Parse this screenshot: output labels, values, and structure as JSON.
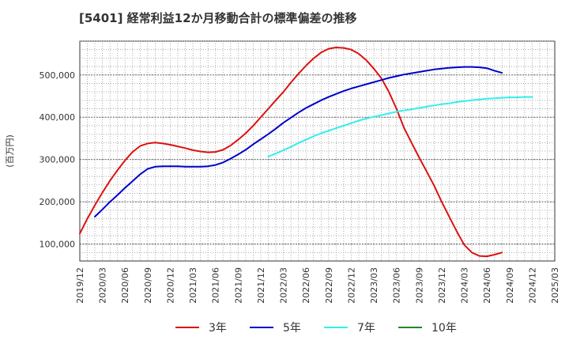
{
  "chart_data": {
    "type": "line",
    "title": "[5401]  経常利益12か月移動合計の標準偏差の推移",
    "ylabel": "(百万円)",
    "xlabel": "",
    "ylim": [
      60000,
      580000
    ],
    "xlim": [
      "2019-12",
      "2025-03"
    ],
    "x_ticks": [
      "2019/12",
      "2020/03",
      "2020/06",
      "2020/09",
      "2020/12",
      "2021/03",
      "2021/06",
      "2021/09",
      "2021/12",
      "2022/03",
      "2022/06",
      "2022/09",
      "2022/12",
      "2023/03",
      "2023/06",
      "2023/09",
      "2023/12",
      "2024/03",
      "2024/06",
      "2024/09",
      "2024/12",
      "2025/03"
    ],
    "y_ticks": [
      100000,
      200000,
      300000,
      400000,
      500000
    ],
    "y_tick_labels": [
      "100,000",
      "200,000",
      "300,000",
      "400,000",
      "500,000"
    ],
    "grid": true,
    "legend": "bottom",
    "series": [
      {
        "name": "3年",
        "color": "#dd1111",
        "x": [
          "2019-12",
          "2020-01",
          "2020-02",
          "2020-03",
          "2020-04",
          "2020-05",
          "2020-06",
          "2020-07",
          "2020-08",
          "2020-09",
          "2020-10",
          "2020-11",
          "2020-12",
          "2021-01",
          "2021-02",
          "2021-03",
          "2021-04",
          "2021-05",
          "2021-06",
          "2021-07",
          "2021-08",
          "2021-09",
          "2021-10",
          "2021-11",
          "2021-12",
          "2022-01",
          "2022-02",
          "2022-03",
          "2022-04",
          "2022-05",
          "2022-06",
          "2022-07",
          "2022-08",
          "2022-09",
          "2022-10",
          "2022-11",
          "2022-12",
          "2023-01",
          "2023-02",
          "2023-03",
          "2023-04",
          "2023-05",
          "2023-06",
          "2023-07",
          "2023-08",
          "2023-09",
          "2023-10",
          "2023-11",
          "2023-12",
          "2024-01",
          "2024-02",
          "2024-03",
          "2024-04",
          "2024-05",
          "2024-06",
          "2024-07",
          "2024-08",
          "2024-09",
          "2024-10",
          "2024-11",
          "2024-12"
        ],
        "values": [
          125000,
          160000,
          192000,
          222000,
          250000,
          275000,
          298000,
          318000,
          332000,
          338000,
          340000,
          338000,
          335000,
          331000,
          327000,
          322000,
          319000,
          317000,
          318000,
          323000,
          333000,
          347000,
          362000,
          380000,
          400000,
          420000,
          440000,
          460000,
          482000,
          503000,
          522000,
          539000,
          553000,
          562000,
          565000,
          564000,
          560000,
          550000,
          535000,
          515000,
          492000,
          460000,
          420000,
          375000,
          340000,
          305000,
          272000,
          238000,
          200000,
          165000,
          130000,
          98000,
          80000,
          72000,
          71000,
          75000,
          80000,
          null,
          null,
          null,
          null
        ]
      },
      {
        "name": "5年",
        "color": "#0000cc",
        "x": [
          "2020-02",
          "2020-03",
          "2020-04",
          "2020-05",
          "2020-06",
          "2020-07",
          "2020-08",
          "2020-09",
          "2020-10",
          "2020-11",
          "2020-12",
          "2021-01",
          "2021-02",
          "2021-03",
          "2021-04",
          "2021-05",
          "2021-06",
          "2021-07",
          "2021-08",
          "2021-09",
          "2021-10",
          "2021-11",
          "2021-12",
          "2022-01",
          "2022-02",
          "2022-03",
          "2022-04",
          "2022-05",
          "2022-06",
          "2022-07",
          "2022-08",
          "2022-09",
          "2022-10",
          "2022-11",
          "2022-12",
          "2023-01",
          "2023-02",
          "2023-03",
          "2023-04",
          "2023-05",
          "2023-06",
          "2023-07",
          "2023-08",
          "2023-09",
          "2023-10",
          "2023-11",
          "2023-12",
          "2024-01",
          "2024-02",
          "2024-03",
          "2024-04",
          "2024-05",
          "2024-06",
          "2024-07",
          "2024-08",
          "2024-09",
          "2024-10",
          "2024-11",
          "2024-12"
        ],
        "values": [
          165000,
          182000,
          200000,
          216000,
          233000,
          249000,
          265000,
          278000,
          283000,
          284000,
          284000,
          284000,
          283000,
          283000,
          283000,
          284000,
          287000,
          293000,
          302000,
          312000,
          323000,
          336000,
          348000,
          360000,
          373000,
          387000,
          399000,
          411000,
          422000,
          431000,
          440000,
          448000,
          455000,
          462000,
          468000,
          473000,
          478000,
          483000,
          488000,
          493000,
          497000,
          501000,
          504000,
          507000,
          510000,
          513000,
          515000,
          517000,
          518000,
          519000,
          519000,
          518000,
          516000,
          510000,
          505000,
          null,
          null,
          null,
          null
        ]
      },
      {
        "name": "7年",
        "color": "#33eeee",
        "x": [
          "2022-01",
          "2022-02",
          "2022-03",
          "2022-04",
          "2022-05",
          "2022-06",
          "2022-07",
          "2022-08",
          "2022-09",
          "2022-10",
          "2022-11",
          "2022-12",
          "2023-01",
          "2023-02",
          "2023-03",
          "2023-04",
          "2023-05",
          "2023-06",
          "2023-07",
          "2023-08",
          "2023-09",
          "2023-10",
          "2023-11",
          "2023-12",
          "2024-01",
          "2024-02",
          "2024-03",
          "2024-04",
          "2024-05",
          "2024-06",
          "2024-07",
          "2024-08",
          "2024-09",
          "2024-10",
          "2024-11",
          "2024-12"
        ],
        "values": [
          307000,
          314000,
          322000,
          330000,
          339000,
          347000,
          355000,
          362000,
          368000,
          374000,
          380000,
          386000,
          392000,
          397000,
          401000,
          405000,
          409000,
          413000,
          416000,
          419000,
          422000,
          425000,
          428000,
          431000,
          433000,
          436000,
          438000,
          440000,
          442000,
          444000,
          445000,
          446000,
          447000,
          447000,
          448000,
          448000
        ]
      },
      {
        "name": "10年",
        "color": "#228822",
        "x": [],
        "values": []
      }
    ]
  }
}
